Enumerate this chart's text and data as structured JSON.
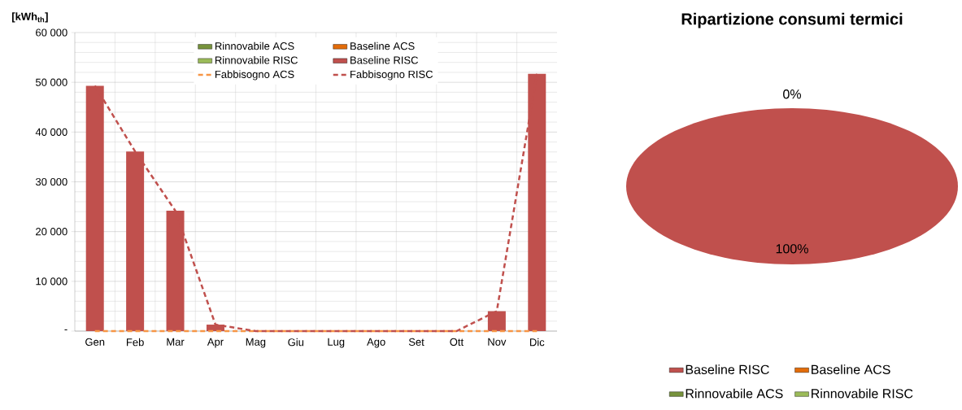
{
  "chart_data": [
    {
      "type": "bar",
      "ylabel": "[kWh$_{th}$]",
      "categories": [
        "Gen",
        "Feb",
        "Mar",
        "Apr",
        "Mag",
        "Giu",
        "Lug",
        "Ago",
        "Set",
        "Ott",
        "Nov",
        "Dic"
      ],
      "series": [
        {
          "name": "Rinnovabile ACS",
          "color": "#77933c",
          "values": [
            0,
            0,
            0,
            0,
            0,
            0,
            0,
            0,
            0,
            0,
            0,
            0
          ]
        },
        {
          "name": "Baseline ACS",
          "color": "#e36c09",
          "values": [
            0,
            0,
            0,
            0,
            0,
            0,
            0,
            0,
            0,
            0,
            0,
            0
          ]
        },
        {
          "name": "Rinnovabile RISC",
          "color": "#9bbb59",
          "values": [
            0,
            0,
            0,
            0,
            0,
            0,
            0,
            0,
            0,
            0,
            0,
            0
          ]
        },
        {
          "name": "Baseline RISC",
          "color": "#c0504d",
          "values": [
            49300,
            36100,
            24200,
            1300,
            0,
            0,
            0,
            0,
            0,
            0,
            4000,
            51700
          ]
        },
        {
          "name": "Fabbisogno ACS",
          "type": "line",
          "line_style": "dashed",
          "color": "#f79646",
          "values": [
            0,
            0,
            0,
            0,
            0,
            0,
            0,
            0,
            0,
            0,
            0,
            0
          ]
        },
        {
          "name": "Fabbisogno RISC",
          "type": "line",
          "line_style": "dashed",
          "color": "#c0504d",
          "values": [
            49300,
            36100,
            24200,
            1300,
            0,
            0,
            0,
            0,
            0,
            0,
            4000,
            51700
          ]
        }
      ],
      "ylim": [
        0,
        60000
      ],
      "yticks": [
        {
          "value": 0,
          "label": "-"
        },
        {
          "value": 10000,
          "label": "10 000"
        },
        {
          "value": 20000,
          "label": "20 000"
        },
        {
          "value": 30000,
          "label": "30 000"
        },
        {
          "value": 40000,
          "label": "40 000"
        },
        {
          "value": 50000,
          "label": "50 000"
        },
        {
          "value": 60000,
          "label": "60 000"
        }
      ],
      "grid": true,
      "legend": "top"
    },
    {
      "type": "pie",
      "title": "Ripartizione consumi termici",
      "categories": [
        "Baseline RISC",
        "Baseline ACS",
        "Rinnovabile ACS",
        "Rinnovabile RISC"
      ],
      "values": [
        100,
        0,
        0,
        0
      ],
      "colors": [
        "#c0504d",
        "#e36c09",
        "#77933c",
        "#9bbb59"
      ],
      "value_labels": [
        "100%",
        "0%",
        null,
        null
      ],
      "legend": "bottom"
    }
  ]
}
